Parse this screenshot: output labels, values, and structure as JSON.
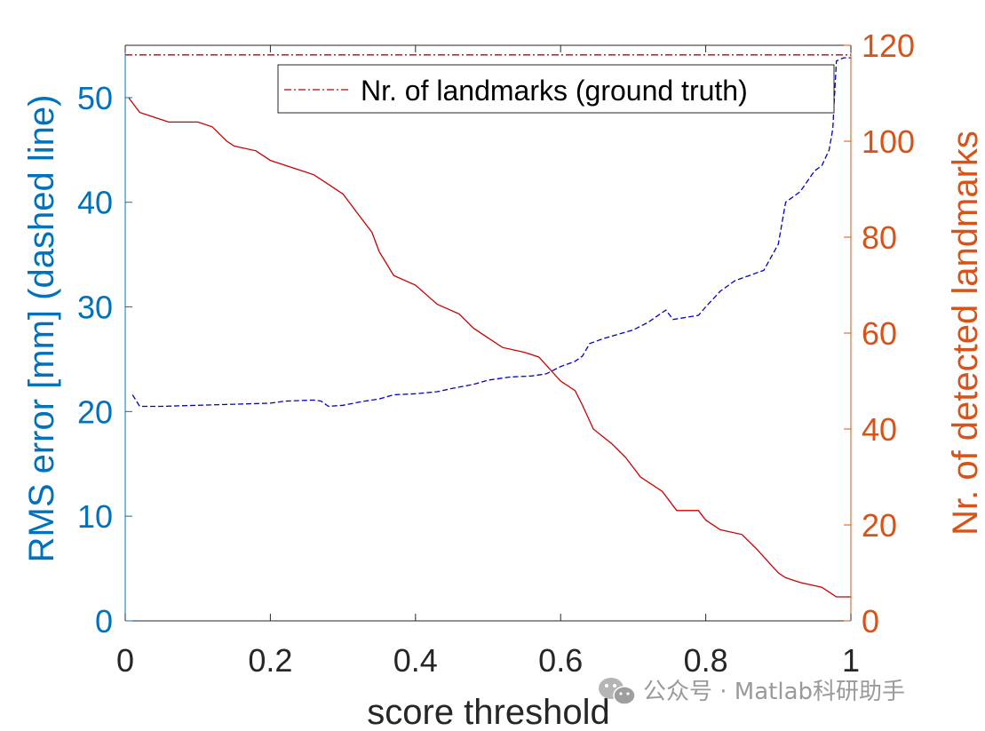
{
  "chart_data": {
    "type": "line",
    "xlabel": "score threshold",
    "ylabel_left": "RMS error [mm] (dashed line)",
    "ylabel_right": "Nr. of detected landmarks",
    "xlim": [
      0,
      1
    ],
    "ylim_left": [
      0,
      55
    ],
    "ylim_right": [
      0,
      120
    ],
    "xticks": [
      "0",
      "0.2",
      "0.4",
      "0.6",
      "0.8",
      "1"
    ],
    "yticks_left": [
      "0",
      "10",
      "20",
      "30",
      "40",
      "50"
    ],
    "yticks_right": [
      "0",
      "20",
      "40",
      "60",
      "80",
      "100",
      "120"
    ],
    "grid": false,
    "legend": {
      "position": "top-right",
      "entries": [
        "Nr. of landmarks (ground truth)"
      ]
    },
    "series": [
      {
        "name": "Nr. of landmarks (ground truth)",
        "axis": "right",
        "style": "dash-dot",
        "color": "#C00000",
        "x": [
          0,
          1
        ],
        "y": [
          118,
          118
        ]
      },
      {
        "axis": "left",
        "style": "dashed",
        "color": "#0000CC",
        "x": [
          0.01,
          0.02,
          0.05,
          0.1,
          0.15,
          0.2,
          0.22,
          0.26,
          0.27,
          0.28,
          0.3,
          0.33,
          0.35,
          0.37,
          0.4,
          0.43,
          0.45,
          0.48,
          0.5,
          0.53,
          0.56,
          0.58,
          0.6,
          0.62,
          0.63,
          0.64,
          0.66,
          0.7,
          0.72,
          0.745,
          0.755,
          0.79,
          0.8,
          0.82,
          0.84,
          0.88,
          0.9,
          0.91,
          0.93,
          0.95,
          0.96,
          0.97,
          0.975,
          0.98,
          0.99,
          1.0
        ],
        "y": [
          21.6,
          20.5,
          20.5,
          20.6,
          20.7,
          20.8,
          21.0,
          21.1,
          21.0,
          20.5,
          20.6,
          21.0,
          21.2,
          21.6,
          21.7,
          21.9,
          22.2,
          22.6,
          23.0,
          23.3,
          23.4,
          23.6,
          24.3,
          24.8,
          25.3,
          26.5,
          27.0,
          27.8,
          28.5,
          29.7,
          28.8,
          29.2,
          30.0,
          31.5,
          32.5,
          33.5,
          36.0,
          40.0,
          41.0,
          43.0,
          43.5,
          45.0,
          47.0,
          53.5,
          53.8,
          53.8
        ]
      },
      {
        "axis": "right",
        "style": "solid",
        "color": "#CC0000",
        "x": [
          0.005,
          0.02,
          0.04,
          0.06,
          0.1,
          0.12,
          0.14,
          0.15,
          0.18,
          0.2,
          0.22,
          0.24,
          0.26,
          0.28,
          0.3,
          0.32,
          0.34,
          0.35,
          0.37,
          0.4,
          0.43,
          0.46,
          0.48,
          0.5,
          0.52,
          0.55,
          0.57,
          0.6,
          0.62,
          0.63,
          0.645,
          0.67,
          0.69,
          0.71,
          0.74,
          0.76,
          0.79,
          0.8,
          0.82,
          0.85,
          0.87,
          0.9,
          0.91,
          0.93,
          0.96,
          0.97,
          0.98,
          1.0
        ],
        "y": [
          109,
          106,
          105,
          104,
          104,
          103,
          100,
          99,
          98,
          96,
          95,
          94,
          93,
          91,
          89,
          85,
          81,
          77,
          72,
          70,
          66,
          64,
          61,
          59,
          57,
          56,
          55,
          50,
          48,
          45,
          40,
          37,
          34,
          30,
          27,
          23,
          23,
          21,
          19,
          18,
          15,
          10,
          9,
          8,
          7,
          6,
          5,
          5
        ]
      }
    ]
  },
  "watermark": {
    "text": "公众号 · Matlab科研助手"
  }
}
